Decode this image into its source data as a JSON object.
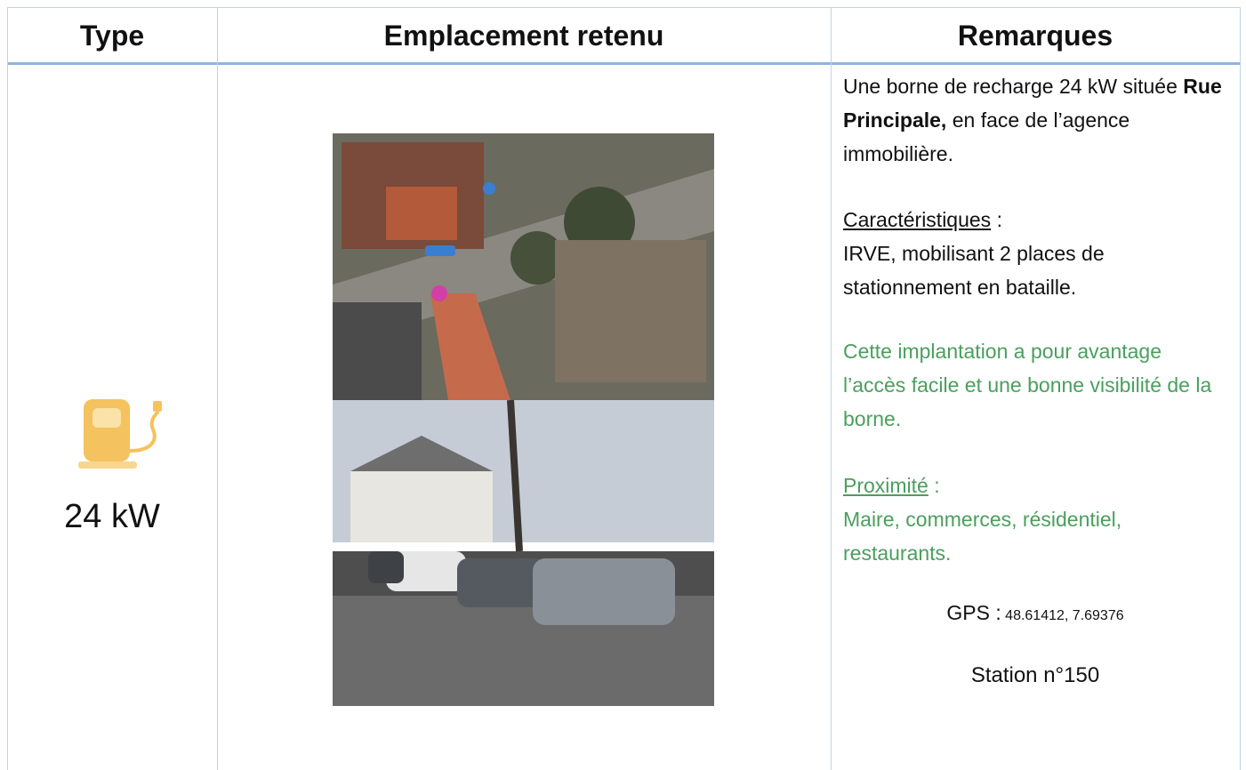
{
  "table": {
    "headers": [
      "Type",
      "Emplacement retenu",
      "Remarques"
    ],
    "type_cell": {
      "power": "24 kW"
    },
    "remarks": {
      "description": [
        "Une borne de recharge 24 kW située ",
        "Rue Principale,",
        " en face de l’agence immobilière."
      ],
      "characteristics": {
        "label": "Caractéristiques",
        "separator": " :",
        "text": "IRVE, mobilisant 2 places de stationnement en bataille."
      },
      "advantage": "Cette implantation a pour avantage l’accès facile et une bonne visibilité de la borne.",
      "proximity": {
        "label": "Proximité",
        "separator": " :",
        "text": "Maire, commerces, résidentiel, restaurants."
      },
      "gps": {
        "label": "GPS :",
        "value": " 48.61412, 7.69376"
      },
      "station": "Station n°150"
    }
  }
}
